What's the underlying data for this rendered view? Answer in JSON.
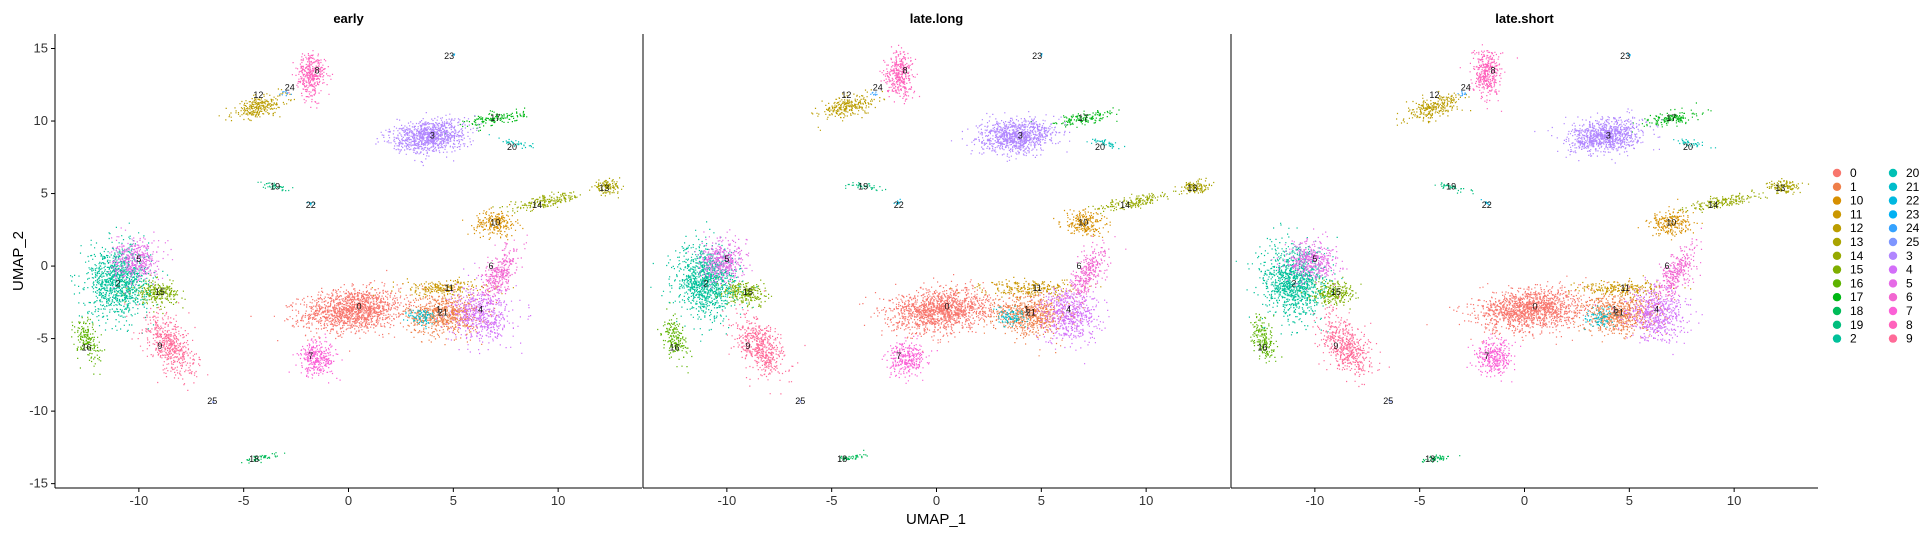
{
  "chart_data": {
    "type": "scatter",
    "facets": [
      "early",
      "late.long",
      "late.short"
    ],
    "xlabel": "UMAP_1",
    "ylabel": "UMAP_2",
    "xlim": [
      -14,
      14
    ],
    "ylim": [
      -15.3,
      16
    ],
    "xticks": [
      -10,
      -5,
      0,
      5,
      10
    ],
    "yticks": [
      -15,
      -10,
      -5,
      0,
      5,
      10,
      15
    ],
    "legend_position": "right",
    "legend_columns": 2,
    "clusters": [
      {
        "name": "0",
        "color": "#F8766D",
        "x": 0.5,
        "y": -2.8
      },
      {
        "name": "1",
        "color": "#EF7F49",
        "x": 4.3,
        "y": -3.0
      },
      {
        "name": "10",
        "color": "#D78F00",
        "x": 7.0,
        "y": 3.0
      },
      {
        "name": "11",
        "color": "#CA9700",
        "x": 4.8,
        "y": -1.5
      },
      {
        "name": "12",
        "color": "#BB9D00",
        "x": -4.3,
        "y": 11.8
      },
      {
        "name": "13",
        "color": "#AAA300",
        "x": 12.2,
        "y": 5.4
      },
      {
        "name": "14",
        "color": "#96A900",
        "x": 9.0,
        "y": 4.2
      },
      {
        "name": "15",
        "color": "#7EAE00",
        "x": -9.0,
        "y": -1.8
      },
      {
        "name": "16",
        "color": "#5DB300",
        "x": -12.5,
        "y": -5.6
      },
      {
        "name": "17",
        "color": "#00B815",
        "x": 7.0,
        "y": 10.2
      },
      {
        "name": "18",
        "color": "#00BB58",
        "x": -4.5,
        "y": -13.3
      },
      {
        "name": "19",
        "color": "#00BE7D",
        "x": -3.5,
        "y": 5.5
      },
      {
        "name": "2",
        "color": "#00C19A",
        "x": -11.0,
        "y": -1.2
      },
      {
        "name": "20",
        "color": "#00C0B4",
        "x": 7.8,
        "y": 8.2
      },
      {
        "name": "21",
        "color": "#00BDCB",
        "x": 4.5,
        "y": -3.2
      },
      {
        "name": "22",
        "color": "#00B8E0",
        "x": -1.8,
        "y": 4.2
      },
      {
        "name": "23",
        "color": "#00B1F3",
        "x": 4.8,
        "y": 14.5
      },
      {
        "name": "24",
        "color": "#35A2FF",
        "x": -2.8,
        "y": 12.3
      },
      {
        "name": "25",
        "color": "#7E96FF",
        "x": -6.5,
        "y": -9.3
      },
      {
        "name": "3",
        "color": "#B186FF",
        "x": 4.0,
        "y": 9.0
      },
      {
        "name": "4",
        "color": "#D36EF9",
        "x": 6.3,
        "y": -3.0
      },
      {
        "name": "5",
        "color": "#E56AE6",
        "x": -10.0,
        "y": 0.5
      },
      {
        "name": "6",
        "color": "#F266D1",
        "x": 6.8,
        "y": 0.0
      },
      {
        "name": "7",
        "color": "#FB61D7",
        "x": -1.8,
        "y": -6.2
      },
      {
        "name": "8",
        "color": "#FF62BC",
        "x": -1.5,
        "y": 13.5
      },
      {
        "name": "9",
        "color": "#FF6A98",
        "x": -9.0,
        "y": -5.5
      }
    ]
  }
}
